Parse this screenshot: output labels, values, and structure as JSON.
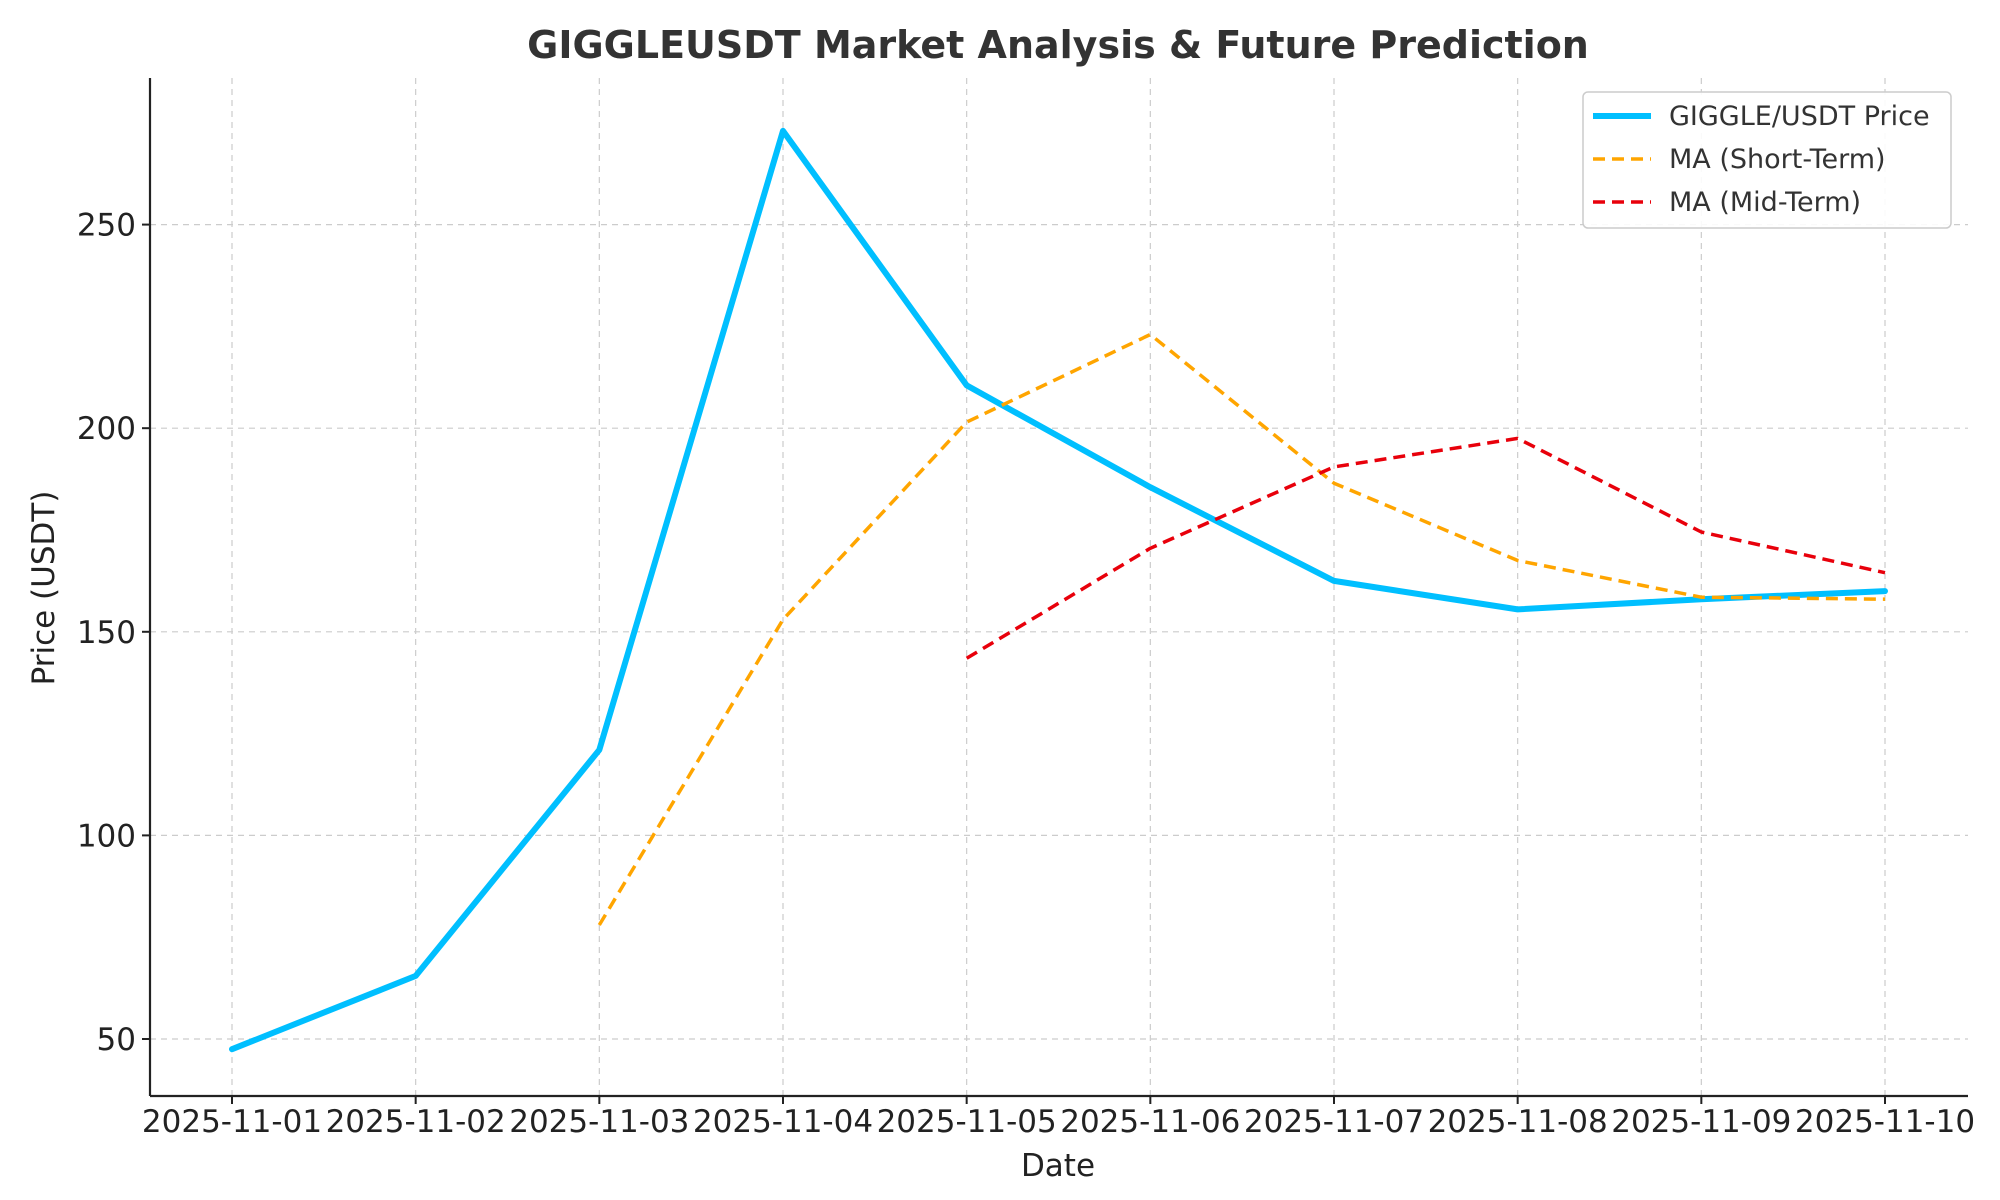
{
  "chart_data": {
    "type": "line",
    "title": "GIGGLEUSDT Market Analysis & Future Prediction",
    "xlabel": "Date",
    "ylabel": "Price (USDT)",
    "categories": [
      "2025-11-01",
      "2025-11-02",
      "2025-11-03",
      "2025-11-04",
      "2025-11-05",
      "2025-11-06",
      "2025-11-07",
      "2025-11-08",
      "2025-11-09",
      "2025-11-10"
    ],
    "ylim": [
      36,
      286
    ],
    "yticks": [
      50,
      100,
      150,
      200,
      250
    ],
    "grid": true,
    "legend_position": "top-right",
    "series": [
      {
        "name": "GIGGLE/USDT Price",
        "color": "#00bfff",
        "style": "solid",
        "values": [
          47.5,
          65.5,
          121,
          273,
          210.5,
          185.5,
          162.5,
          155.5,
          158,
          160
        ]
      },
      {
        "name": "MA (Short-Term)",
        "color": "#ffa500",
        "style": "dashed",
        "values": [
          null,
          null,
          78,
          153,
          201.5,
          223,
          186.5,
          167.5,
          158.5,
          158
        ]
      },
      {
        "name": "MA (Mid-Term)",
        "color": "#e8000b",
        "style": "dashed",
        "values": [
          null,
          null,
          null,
          null,
          143.5,
          170.5,
          190.5,
          197.5,
          174.5,
          164.5
        ]
      }
    ]
  }
}
